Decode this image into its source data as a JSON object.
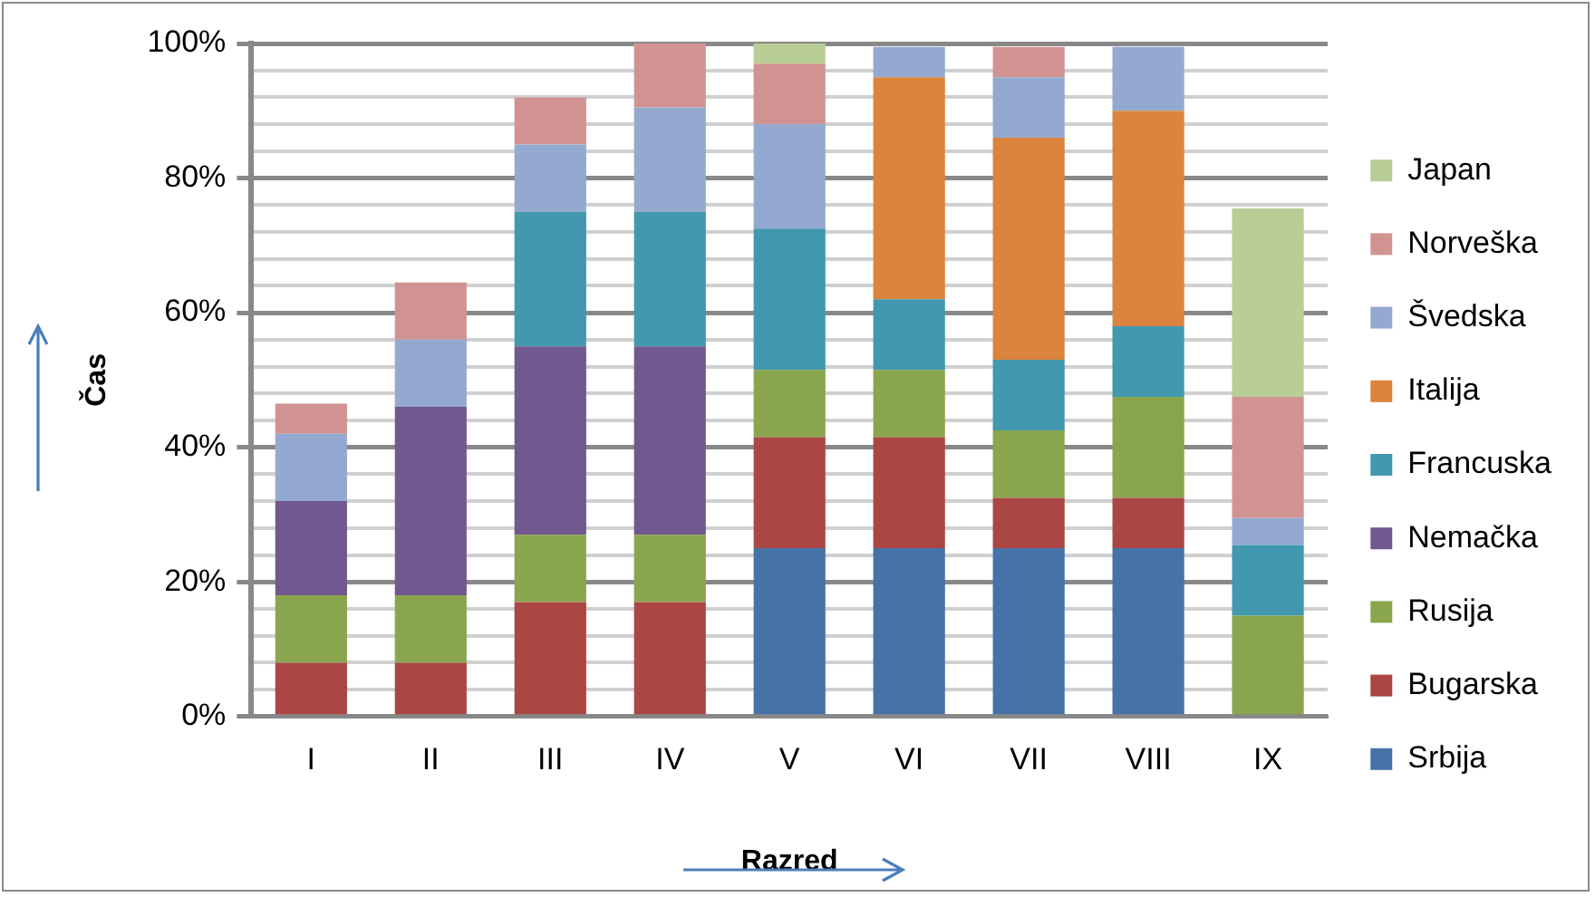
{
  "chart_data": {
    "type": "bar",
    "stacked": true,
    "xlabel": "Razred",
    "ylabel": "Čas",
    "categories": [
      "I",
      "II",
      "III",
      "IV",
      "V",
      "VI",
      "VII",
      "VIII",
      "IX"
    ],
    "series": [
      {
        "name": "Srbija",
        "color": "#4572a7",
        "values": [
          0,
          0,
          0,
          0,
          25,
          25,
          25,
          25,
          0
        ]
      },
      {
        "name": "Bugarska",
        "color": "#aa4643",
        "values": [
          8,
          8,
          17,
          17,
          16.5,
          16.5,
          7.5,
          7.5,
          0
        ]
      },
      {
        "name": "Rusija",
        "color": "#89a54e",
        "values": [
          10,
          10,
          10,
          10,
          10,
          10,
          10,
          15,
          15
        ]
      },
      {
        "name": "Nemačka",
        "color": "#71588f",
        "values": [
          14,
          28,
          28,
          28,
          0,
          0,
          0,
          0,
          0
        ]
      },
      {
        "name": "Francuska",
        "color": "#4198af",
        "values": [
          0,
          0,
          20,
          20,
          21,
          10.5,
          10.5,
          10.5,
          10.5
        ]
      },
      {
        "name": "Italija",
        "color": "#db843d",
        "values": [
          0,
          0,
          0,
          0,
          0,
          33,
          33,
          32,
          0
        ]
      },
      {
        "name": "Švedska",
        "color": "#93a9cf",
        "values": [
          10,
          10,
          10,
          15.5,
          15.5,
          4.5,
          9,
          9.5,
          4
        ]
      },
      {
        "name": "Norveška",
        "color": "#d19392",
        "values": [
          4.5,
          8.5,
          7,
          9.5,
          9,
          0,
          4.5,
          0,
          18
        ]
      },
      {
        "name": "Japan",
        "color": "#b9cd96",
        "values": [
          0,
          0,
          0,
          0,
          3,
          0,
          0,
          0,
          28
        ]
      }
    ],
    "ylim": [
      0,
      100
    ],
    "yticks": [
      {
        "value": 0,
        "label": "0%"
      },
      {
        "value": 4,
        "label": null
      },
      {
        "value": 8,
        "label": null
      },
      {
        "value": 12,
        "label": null
      },
      {
        "value": 16,
        "label": null
      },
      {
        "value": 20,
        "label": "20%"
      },
      {
        "value": 24,
        "label": null
      },
      {
        "value": 28,
        "label": null
      },
      {
        "value": 32,
        "label": null
      },
      {
        "value": 36,
        "label": null
      },
      {
        "value": 40,
        "label": "40%"
      },
      {
        "value": 44,
        "label": null
      },
      {
        "value": 48,
        "label": null
      },
      {
        "value": 52,
        "label": null
      },
      {
        "value": 56,
        "label": null
      },
      {
        "value": 60,
        "label": "60%"
      },
      {
        "value": 64,
        "label": null
      },
      {
        "value": 68,
        "label": null
      },
      {
        "value": 72,
        "label": null
      },
      {
        "value": 76,
        "label": null
      },
      {
        "value": 80,
        "label": "80%"
      },
      {
        "value": 84,
        "label": null
      },
      {
        "value": 88,
        "label": null
      },
      {
        "value": 92,
        "label": null
      },
      {
        "value": 96,
        "label": null
      },
      {
        "value": 100,
        "label": "100%"
      }
    ],
    "grid": "y",
    "legend": "right"
  }
}
